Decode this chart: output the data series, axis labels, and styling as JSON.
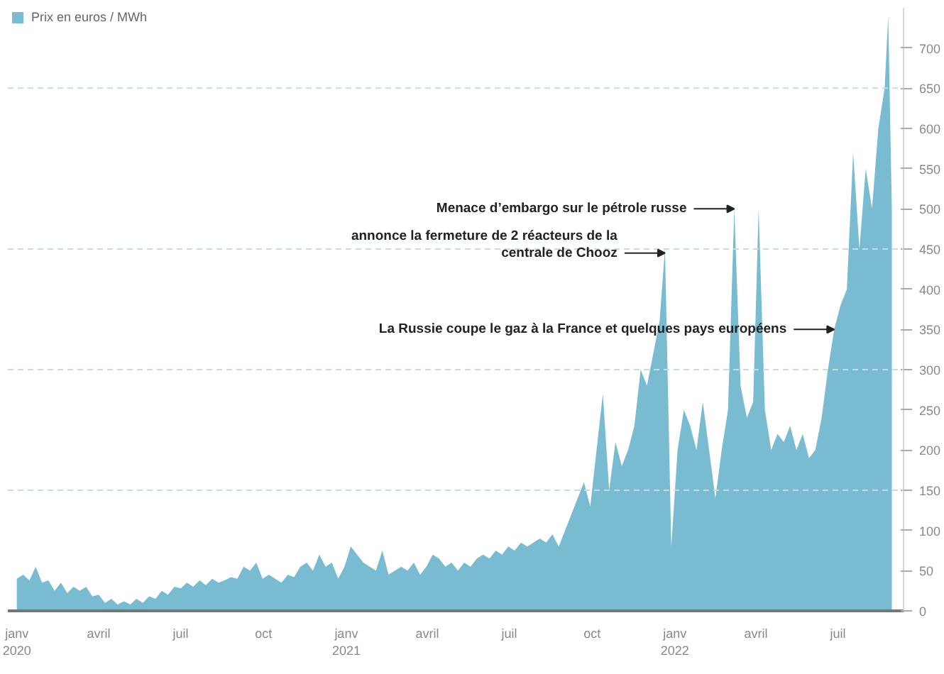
{
  "chart_data": {
    "type": "area",
    "legend": "top left",
    "grid": false,
    "xlim": [
      "2019-12-22",
      "2022-09-12"
    ],
    "ylim": [
      0,
      750
    ],
    "xticks": [
      {
        "value": "2020-01-01",
        "label": "janv\n2020"
      },
      {
        "value": "2020-04-01",
        "label": "avril"
      },
      {
        "value": "2020-07-01",
        "label": "juil"
      },
      {
        "value": "2020-10-01",
        "label": "oct"
      },
      {
        "value": "2021-01-01",
        "label": "janv\n2021"
      },
      {
        "value": "2021-04-01",
        "label": "avril"
      },
      {
        "value": "2021-07-01",
        "label": "juil"
      },
      {
        "value": "2021-10-01",
        "label": "oct"
      },
      {
        "value": "2022-01-01",
        "label": "janv\n2022"
      },
      {
        "value": "2022-04-01",
        "label": "avril"
      },
      {
        "value": "2022-07-01",
        "label": "juil"
      }
    ],
    "yticks": [
      0,
      50,
      100,
      150,
      200,
      250,
      300,
      350,
      400,
      450,
      500,
      550,
      600,
      650,
      700
    ],
    "ref_lines": [
      {
        "axis": "y",
        "value": 150,
        "color": "#c8dce0",
        "line_style": "dashed"
      },
      {
        "axis": "y",
        "value": 300,
        "color": "#c8dce0",
        "line_style": "dashed"
      },
      {
        "axis": "y",
        "value": 450,
        "color": "#c8dce0",
        "line_style": "dashed"
      },
      {
        "axis": "y",
        "value": 650,
        "color": "#c8dce0",
        "line_style": "dashed"
      }
    ],
    "annotations": [
      {
        "text": "Menace d’embargo sur le pétrole russe",
        "x": "2022-03-08",
        "y": 500
      },
      {
        "text": "annonce la fermeture de 2 réacteurs de la\ncentrale de Chooz",
        "x": "2021-12-21",
        "y": 445
      },
      {
        "text": "La Russie coupe le gaz à la France et quelques pays européens",
        "x": "2022-06-27",
        "y": 350
      }
    ],
    "series": [
      {
        "name": "Prix en euros / MWh",
        "color": "#79bcd2",
        "x": [
          "2020-01-01",
          "2020-01-08",
          "2020-01-15",
          "2020-01-22",
          "2020-01-29",
          "2020-02-05",
          "2020-02-12",
          "2020-02-19",
          "2020-02-26",
          "2020-03-04",
          "2020-03-11",
          "2020-03-18",
          "2020-03-25",
          "2020-04-01",
          "2020-04-08",
          "2020-04-15",
          "2020-04-22",
          "2020-04-29",
          "2020-05-06",
          "2020-05-13",
          "2020-05-20",
          "2020-05-27",
          "2020-06-03",
          "2020-06-10",
          "2020-06-17",
          "2020-06-24",
          "2020-07-01",
          "2020-07-08",
          "2020-07-15",
          "2020-07-22",
          "2020-07-29",
          "2020-08-05",
          "2020-08-12",
          "2020-08-19",
          "2020-08-26",
          "2020-09-02",
          "2020-09-09",
          "2020-09-16",
          "2020-09-23",
          "2020-09-30",
          "2020-10-07",
          "2020-10-14",
          "2020-10-21",
          "2020-10-28",
          "2020-11-04",
          "2020-11-11",
          "2020-11-18",
          "2020-11-25",
          "2020-12-02",
          "2020-12-09",
          "2020-12-16",
          "2020-12-23",
          "2020-12-30",
          "2021-01-06",
          "2021-01-13",
          "2021-01-20",
          "2021-01-27",
          "2021-02-03",
          "2021-02-10",
          "2021-02-17",
          "2021-02-24",
          "2021-03-03",
          "2021-03-10",
          "2021-03-17",
          "2021-03-24",
          "2021-03-31",
          "2021-04-07",
          "2021-04-14",
          "2021-04-21",
          "2021-04-28",
          "2021-05-05",
          "2021-05-12",
          "2021-05-19",
          "2021-05-26",
          "2021-06-02",
          "2021-06-09",
          "2021-06-16",
          "2021-06-23",
          "2021-06-30",
          "2021-07-07",
          "2021-07-14",
          "2021-07-21",
          "2021-07-28",
          "2021-08-04",
          "2021-08-11",
          "2021-08-18",
          "2021-08-25",
          "2021-09-01",
          "2021-09-08",
          "2021-09-15",
          "2021-09-22",
          "2021-09-29",
          "2021-10-06",
          "2021-10-13",
          "2021-10-20",
          "2021-10-27",
          "2021-11-03",
          "2021-11-10",
          "2021-11-17",
          "2021-11-24",
          "2021-12-01",
          "2021-12-08",
          "2021-12-15",
          "2021-12-21",
          "2021-12-28",
          "2022-01-04",
          "2022-01-11",
          "2022-01-18",
          "2022-01-25",
          "2022-02-01",
          "2022-02-08",
          "2022-02-15",
          "2022-02-22",
          "2022-03-01",
          "2022-03-08",
          "2022-03-15",
          "2022-03-22",
          "2022-03-29",
          "2022-04-04",
          "2022-04-11",
          "2022-04-18",
          "2022-04-25",
          "2022-05-02",
          "2022-05-09",
          "2022-05-16",
          "2022-05-23",
          "2022-05-30",
          "2022-06-06",
          "2022-06-13",
          "2022-06-20",
          "2022-06-27",
          "2022-07-04",
          "2022-07-11",
          "2022-07-18",
          "2022-07-25",
          "2022-08-01",
          "2022-08-08",
          "2022-08-15",
          "2022-08-22",
          "2022-08-26",
          "2022-08-30"
        ],
        "values": [
          40,
          45,
          38,
          55,
          35,
          38,
          25,
          35,
          22,
          30,
          25,
          30,
          18,
          20,
          10,
          15,
          8,
          12,
          8,
          15,
          10,
          18,
          15,
          25,
          20,
          30,
          28,
          35,
          30,
          38,
          32,
          40,
          35,
          38,
          42,
          40,
          55,
          50,
          60,
          40,
          45,
          40,
          35,
          45,
          42,
          55,
          60,
          50,
          70,
          55,
          60,
          40,
          55,
          80,
          70,
          60,
          55,
          50,
          75,
          45,
          50,
          55,
          50,
          60,
          45,
          55,
          70,
          65,
          55,
          60,
          50,
          60,
          55,
          65,
          70,
          65,
          75,
          70,
          80,
          75,
          85,
          80,
          85,
          90,
          85,
          95,
          80,
          100,
          120,
          140,
          160,
          130,
          200,
          270,
          150,
          210,
          180,
          200,
          230,
          300,
          280,
          320,
          360,
          450,
          80,
          200,
          250,
          230,
          200,
          260,
          200,
          140,
          200,
          250,
          500,
          280,
          240,
          260,
          500,
          250,
          200,
          220,
          210,
          230,
          200,
          220,
          190,
          200,
          240,
          300,
          350,
          380,
          400,
          570,
          450,
          550,
          500,
          600,
          650,
          740,
          500
        ]
      }
    ]
  }
}
